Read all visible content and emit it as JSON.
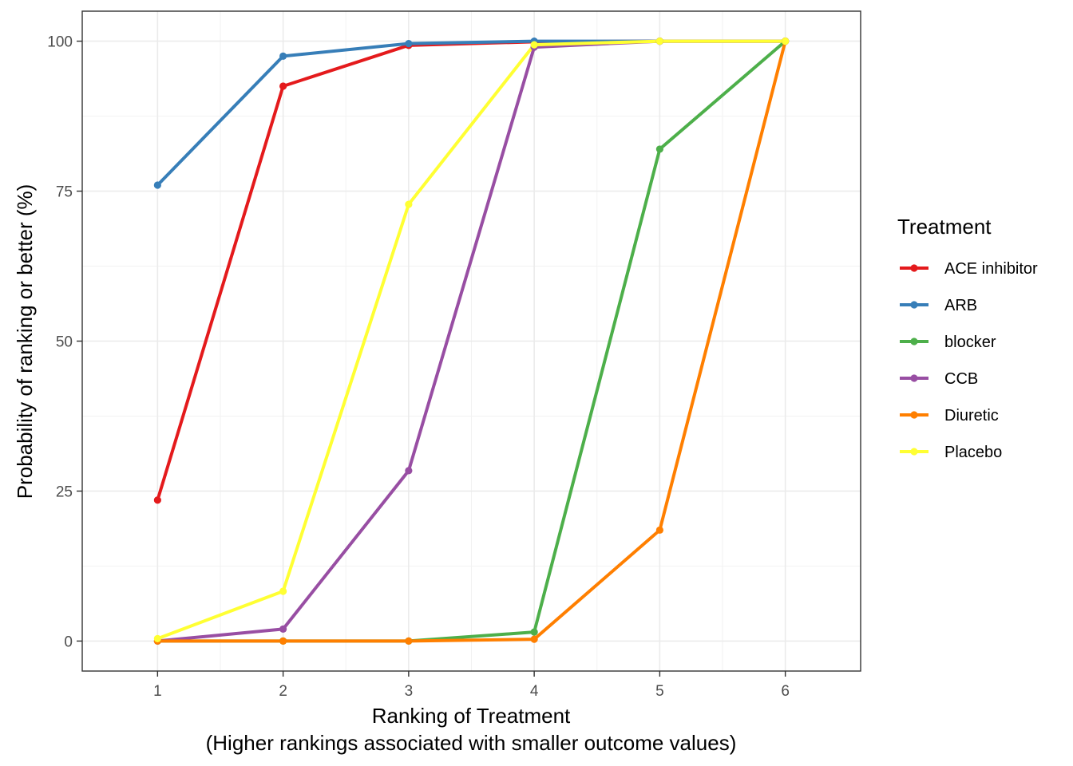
{
  "chart_data": {
    "type": "line",
    "title": "",
    "xlabel": "Ranking of Treatment",
    "xlabel_line2": "(Higher rankings associated with smaller outcome values)",
    "ylabel": "Probability of ranking or better (%)",
    "x": [
      1,
      2,
      3,
      4,
      5,
      6
    ],
    "xlim": [
      0.4,
      6.6
    ],
    "ylim": [
      -5,
      105
    ],
    "x_ticks": [
      "1",
      "2",
      "3",
      "4",
      "5",
      "6"
    ],
    "y_ticks": [
      "0",
      "25",
      "50",
      "75",
      "100"
    ],
    "y_tick_values": [
      0,
      25,
      50,
      75,
      100
    ],
    "grid": true,
    "legend": {
      "title": "Treatment",
      "position": "right"
    },
    "series": [
      {
        "name": "ACE inhibitor",
        "color": "#e41a1c",
        "values": [
          23.5,
          92.5,
          99.3,
          99.9,
          100,
          100
        ]
      },
      {
        "name": "ARB",
        "color": "#377eb8",
        "values": [
          76,
          97.5,
          99.6,
          100,
          100,
          100
        ]
      },
      {
        "name": "blocker",
        "color": "#4daf4a",
        "values": [
          0,
          0,
          0,
          1.5,
          82,
          100
        ]
      },
      {
        "name": "CCB",
        "color": "#984ea3",
        "values": [
          0,
          2,
          28.4,
          99,
          100,
          100
        ]
      },
      {
        "name": "Diuretic",
        "color": "#ff7f00",
        "values": [
          0,
          0,
          0,
          0.3,
          18.5,
          100
        ]
      },
      {
        "name": "Placebo",
        "color": "#ffff33",
        "values": [
          0.4,
          8.3,
          72.8,
          99.4,
          100,
          100
        ]
      }
    ]
  }
}
